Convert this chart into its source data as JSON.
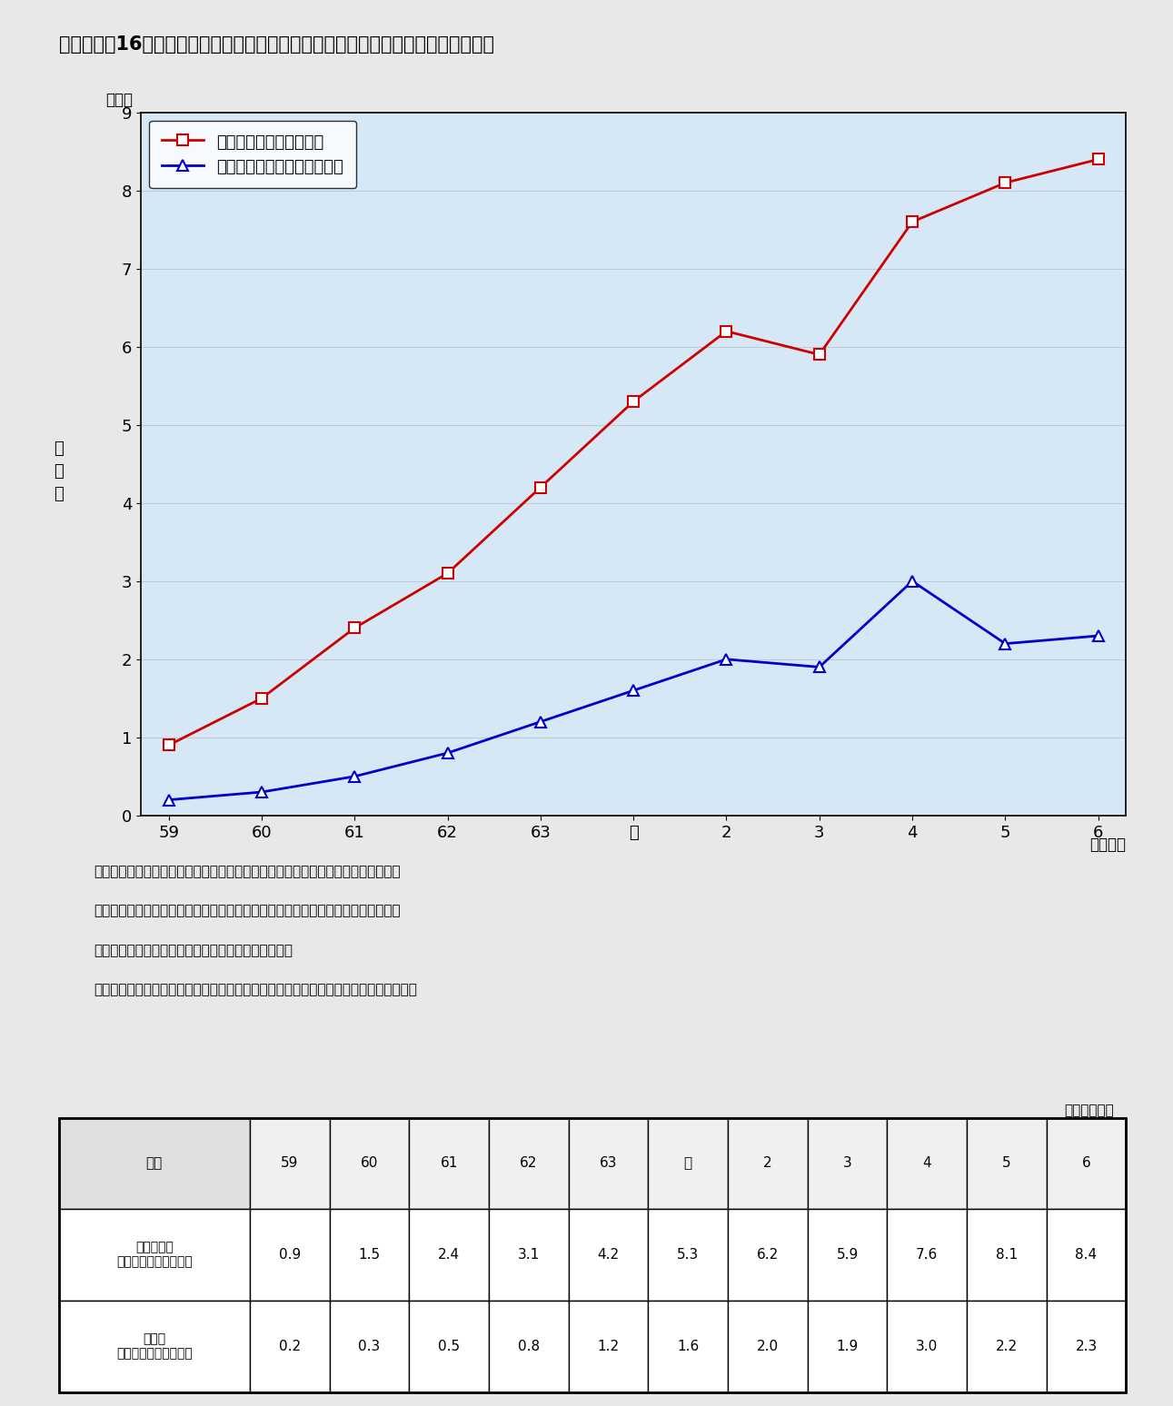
{
  "title": "第１－３－16図　情報ストック量に占める電気通信系映像メディアのシェアの推移",
  "x_labels": [
    "59",
    "60",
    "61",
    "62",
    "63",
    "元",
    "2",
    "3",
    "4",
    "5",
    "6"
  ],
  "x_label_suffix": "（年度）",
  "y_label": "占\n有\n率",
  "y_unit": "（％）",
  "y_min": 0,
  "y_max": 9,
  "y_ticks": [
    0,
    1,
    2,
    3,
    4,
    5,
    6,
    7,
    8,
    9
  ],
  "series1_label": "電気通信系映像メディア",
  "series1_values": [
    0.9,
    1.5,
    2.4,
    3.1,
    4.2,
    5.3,
    6.2,
    5.9,
    7.6,
    8.1,
    8.4
  ],
  "series1_color": "#cc0000",
  "series1_marker": "s",
  "series2_label": "（参考）輸送系映像メディア",
  "series2_values": [
    0.2,
    0.3,
    0.5,
    0.8,
    1.2,
    1.6,
    2.0,
    1.9,
    3.0,
    2.2,
    2.3
  ],
  "series2_color": "#0000cc",
  "series2_marker": "^",
  "bg_color": "#cce0f0",
  "plot_bg": "#d6e8f5",
  "note_line1": "（注）１　電気通信系映像メディア：地上系テレビジョン放送、ケーブルテレビ、",
  "note_line2": "　　　　　　　　　　　　　　　　　衛星テレビジョン放送、ハイビジョン放送、",
  "note_line3": "　　　　　　　　　　　　　　　　　インターネット",
  "note_line4": "　　　２　輸送系メディア　　　　　：ビデオソフト、レンタルビデオ、ＣＤ－ＲＯＭ",
  "table_unit": "（単位：％）",
  "table_col_header": [
    "年度",
    "59",
    "60",
    "61",
    "62",
    "63",
    "元",
    "2",
    "3",
    "4",
    "5",
    "6"
  ],
  "table_row1_label": "電気通信系\n映像メディアのシェア",
  "table_row1_values": [
    "0.9",
    "1.5",
    "2.4",
    "3.1",
    "4.2",
    "5.3",
    "6.2",
    "5.9",
    "7.6",
    "8.1",
    "8.4"
  ],
  "table_row2_label": "輸送系\n映像メディアのシェア",
  "table_row2_values": [
    "0.2",
    "0.3",
    "0.5",
    "0.8",
    "1.2",
    "1.6",
    "2.0",
    "1.9",
    "3.0",
    "2.2",
    "2.3"
  ]
}
